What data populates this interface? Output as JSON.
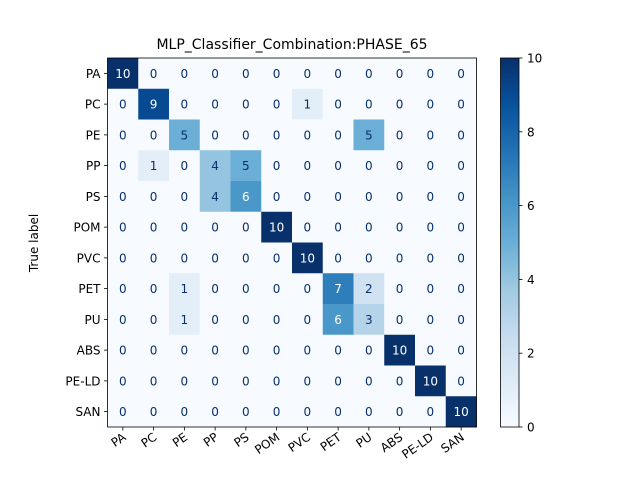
{
  "chart_data": {
    "type": "heatmap",
    "title": "MLP_Classifier_Combination:PHASE_65",
    "ylabel": "True label",
    "xlabel": "",
    "row_labels": [
      "PA",
      "PC",
      "PE",
      "PP",
      "PS",
      "POM",
      "PVC",
      "PET",
      "PU",
      "ABS",
      "PE-LD",
      "SAN"
    ],
    "col_labels": [
      "PA",
      "PC",
      "PE",
      "PP",
      "PS",
      "POM",
      "PVC",
      "PET",
      "PU",
      "ABS",
      "PE-LD",
      "SAN"
    ],
    "values": [
      [
        10,
        0,
        0,
        0,
        0,
        0,
        0,
        0,
        0,
        0,
        0,
        0
      ],
      [
        0,
        9,
        0,
        0,
        0,
        0,
        1,
        0,
        0,
        0,
        0,
        0
      ],
      [
        0,
        0,
        5,
        0,
        0,
        0,
        0,
        0,
        5,
        0,
        0,
        0
      ],
      [
        0,
        1,
        0,
        4,
        5,
        0,
        0,
        0,
        0,
        0,
        0,
        0
      ],
      [
        0,
        0,
        0,
        4,
        6,
        0,
        0,
        0,
        0,
        0,
        0,
        0
      ],
      [
        0,
        0,
        0,
        0,
        0,
        10,
        0,
        0,
        0,
        0,
        0,
        0
      ],
      [
        0,
        0,
        0,
        0,
        0,
        0,
        10,
        0,
        0,
        0,
        0,
        0
      ],
      [
        0,
        0,
        1,
        0,
        0,
        0,
        0,
        7,
        2,
        0,
        0,
        0
      ],
      [
        0,
        0,
        1,
        0,
        0,
        0,
        0,
        6,
        3,
        0,
        0,
        0
      ],
      [
        0,
        0,
        0,
        0,
        0,
        0,
        0,
        0,
        0,
        10,
        0,
        0
      ],
      [
        0,
        0,
        0,
        0,
        0,
        0,
        0,
        0,
        0,
        0,
        10,
        0
      ],
      [
        0,
        0,
        0,
        0,
        0,
        0,
        0,
        0,
        0,
        0,
        0,
        10
      ]
    ],
    "colorbar": {
      "min": 0,
      "max": 10,
      "ticks": [
        0,
        2,
        4,
        6,
        8,
        10
      ],
      "colormap": "Blues"
    },
    "x_tick_rotation_deg": 35
  }
}
